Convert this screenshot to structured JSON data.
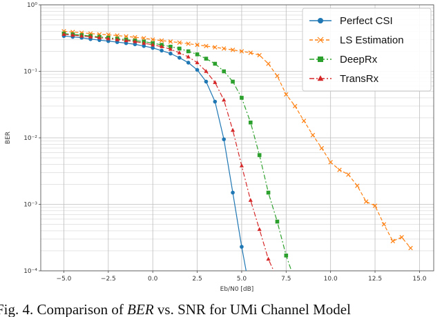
{
  "caption": {
    "text_a": "Fig. 4. Comparison of ",
    "text_b": "BER",
    "text_c": " vs. SNR for UMi Channel Model"
  },
  "chart_data": {
    "type": "line",
    "xlabel": "Eb/N0 [dB]",
    "ylabel": "BER",
    "xlim": [
      -6.3,
      15.8
    ],
    "ylim": [
      0.0001,
      1
    ],
    "yscale": "log",
    "grid": true,
    "legend": "top-right",
    "x_ticks": [
      -5.0,
      -2.5,
      0.0,
      2.5,
      5.0,
      7.5,
      10.0,
      12.5,
      15.0
    ],
    "x_tick_labels": [
      "−5.0",
      "−2.5",
      "0.0",
      "2.5",
      "5.0",
      "7.5",
      "10.0",
      "12.5",
      "15.0"
    ],
    "y_ticks": [
      1,
      0.1,
      0.01,
      0.001,
      0.0001
    ],
    "y_tick_labels": [
      "10⁰",
      "10⁻¹",
      "10⁻²",
      "10⁻³",
      "10⁻⁴"
    ],
    "series": [
      {
        "name": "Perfect CSI",
        "color": "#1f77b4",
        "marker": "circle",
        "linestyle": "solid",
        "x": [
          -5.0,
          -4.5,
          -4.0,
          -3.5,
          -3.0,
          -2.5,
          -2.0,
          -1.5,
          -1.0,
          -0.5,
          0.0,
          0.5,
          1.0,
          1.5,
          2.0,
          2.5,
          3.0,
          3.5,
          4.0,
          4.5,
          5.0,
          5.25
        ],
        "y": [
          0.34,
          0.33,
          0.32,
          0.305,
          0.295,
          0.285,
          0.275,
          0.265,
          0.255,
          0.24,
          0.225,
          0.205,
          0.185,
          0.16,
          0.135,
          0.105,
          0.07,
          0.035,
          0.0095,
          0.0015,
          0.00023,
          0.0001
        ]
      },
      {
        "name": "LS Estimation",
        "color": "#ff7f0e",
        "marker": "x",
        "linestyle": "dashed",
        "x": [
          -5.0,
          -4.5,
          -4.0,
          -3.5,
          -3.0,
          -2.5,
          -2.0,
          -1.5,
          -1.0,
          -0.5,
          0.0,
          0.5,
          1.0,
          1.5,
          2.0,
          2.5,
          3.0,
          3.5,
          4.0,
          4.5,
          5.0,
          5.5,
          6.0,
          6.5,
          7.0,
          7.5,
          8.0,
          8.5,
          9.0,
          9.5,
          10.0,
          10.5,
          11.0,
          11.5,
          12.0,
          12.5,
          13.0,
          13.5,
          14.0,
          14.5
        ],
        "y": [
          0.4,
          0.39,
          0.38,
          0.37,
          0.36,
          0.355,
          0.345,
          0.335,
          0.325,
          0.315,
          0.3,
          0.29,
          0.28,
          0.27,
          0.26,
          0.25,
          0.24,
          0.23,
          0.22,
          0.21,
          0.2,
          0.19,
          0.175,
          0.13,
          0.085,
          0.045,
          0.03,
          0.018,
          0.011,
          0.007,
          0.0043,
          0.0033,
          0.0028,
          0.0019,
          0.0011,
          0.00095,
          0.0005,
          0.00028,
          0.00032,
          0.00022
        ]
      },
      {
        "name": "DeepRx",
        "color": "#2ca02c",
        "marker": "square",
        "linestyle": "dashdot",
        "x": [
          -5.0,
          -4.5,
          -4.0,
          -3.5,
          -3.0,
          -2.5,
          -2.0,
          -1.5,
          -1.0,
          -0.5,
          0.0,
          0.5,
          1.0,
          1.5,
          2.0,
          2.5,
          3.0,
          3.5,
          4.0,
          4.5,
          5.0,
          5.5,
          6.0,
          6.5,
          7.0,
          7.5,
          7.8
        ],
        "y": [
          0.37,
          0.36,
          0.35,
          0.34,
          0.33,
          0.32,
          0.31,
          0.3,
          0.29,
          0.28,
          0.265,
          0.25,
          0.235,
          0.22,
          0.2,
          0.18,
          0.155,
          0.13,
          0.1,
          0.07,
          0.04,
          0.017,
          0.0055,
          0.0015,
          0.00055,
          0.00017,
          0.0001
        ]
      },
      {
        "name": "TransRx",
        "color": "#d62728",
        "marker": "triangle",
        "linestyle": "dashdot",
        "x": [
          -5.0,
          -4.5,
          -4.0,
          -3.5,
          -3.0,
          -2.5,
          -2.0,
          -1.5,
          -1.0,
          -0.5,
          0.0,
          0.5,
          1.0,
          1.5,
          2.0,
          2.5,
          3.0,
          3.5,
          4.0,
          4.5,
          5.0,
          5.5,
          6.0,
          6.5,
          6.8
        ],
        "y": [
          0.36,
          0.35,
          0.34,
          0.33,
          0.32,
          0.31,
          0.3,
          0.29,
          0.28,
          0.265,
          0.25,
          0.235,
          0.215,
          0.19,
          0.165,
          0.135,
          0.1,
          0.068,
          0.037,
          0.013,
          0.0038,
          0.00115,
          0.00042,
          0.00015,
          0.0001
        ]
      }
    ]
  }
}
